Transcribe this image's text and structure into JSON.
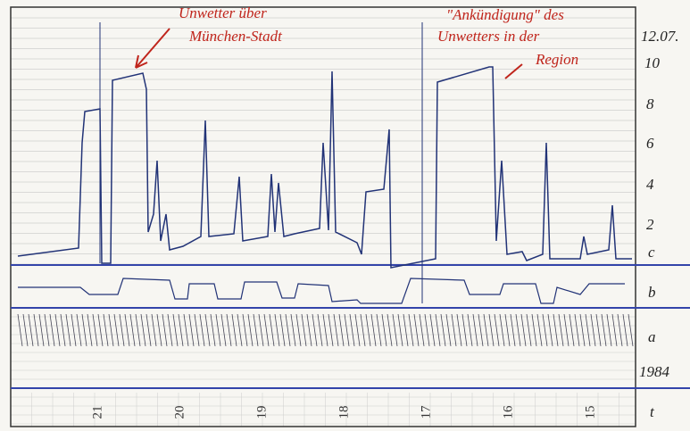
{
  "header": {
    "date": "12.07."
  },
  "scale": [
    "10",
    "8",
    "6",
    "4",
    "2"
  ],
  "channels": [
    "c",
    "b",
    "a"
  ],
  "year": "1984",
  "time_axis": {
    "label": "t",
    "hours": [
      "21",
      "20",
      "19",
      "18",
      "17",
      "16",
      "15"
    ]
  },
  "annotations": [
    {
      "lines": [
        "Unwetter über",
        "München-Stadt"
      ]
    },
    {
      "lines": [
        "\"Ankündigung\" des",
        "Unwetters in der",
        "Region"
      ]
    }
  ]
}
